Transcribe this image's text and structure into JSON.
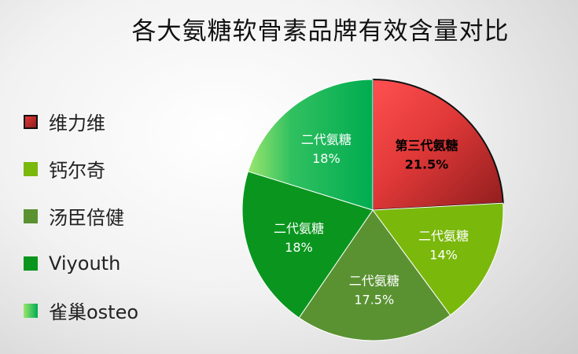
{
  "chart_data": {
    "type": "pie",
    "title": "各大氨糖软骨素品牌有效含量对比",
    "legend_position": "left",
    "series": [
      {
        "name": "维力维",
        "value": 21.5,
        "label": "第三代氨糖",
        "pct": "21.5%",
        "color": "#e03838",
        "dark": "#8f1d1d"
      },
      {
        "name": "钙尔奇",
        "value": 14,
        "label": "二代氨糖",
        "pct": "14%",
        "color": "#7ab80c",
        "dark": "#7ab80c"
      },
      {
        "name": "汤臣倍健",
        "value": 17.5,
        "label": "二代氨糖",
        "pct": "17.5%",
        "color": "#5a9232",
        "dark": "#5a9232"
      },
      {
        "name": "Viyouth",
        "value": 18,
        "label": "二代氨糖",
        "pct": "18%",
        "color": "#0a961e",
        "dark": "#0a961e"
      },
      {
        "name": "雀巢osteo",
        "value": 18,
        "label": "二代氨糖",
        "pct": "18%",
        "color": "#00ac50",
        "dark": "#00ac50",
        "light": "#9ae66e"
      }
    ]
  }
}
